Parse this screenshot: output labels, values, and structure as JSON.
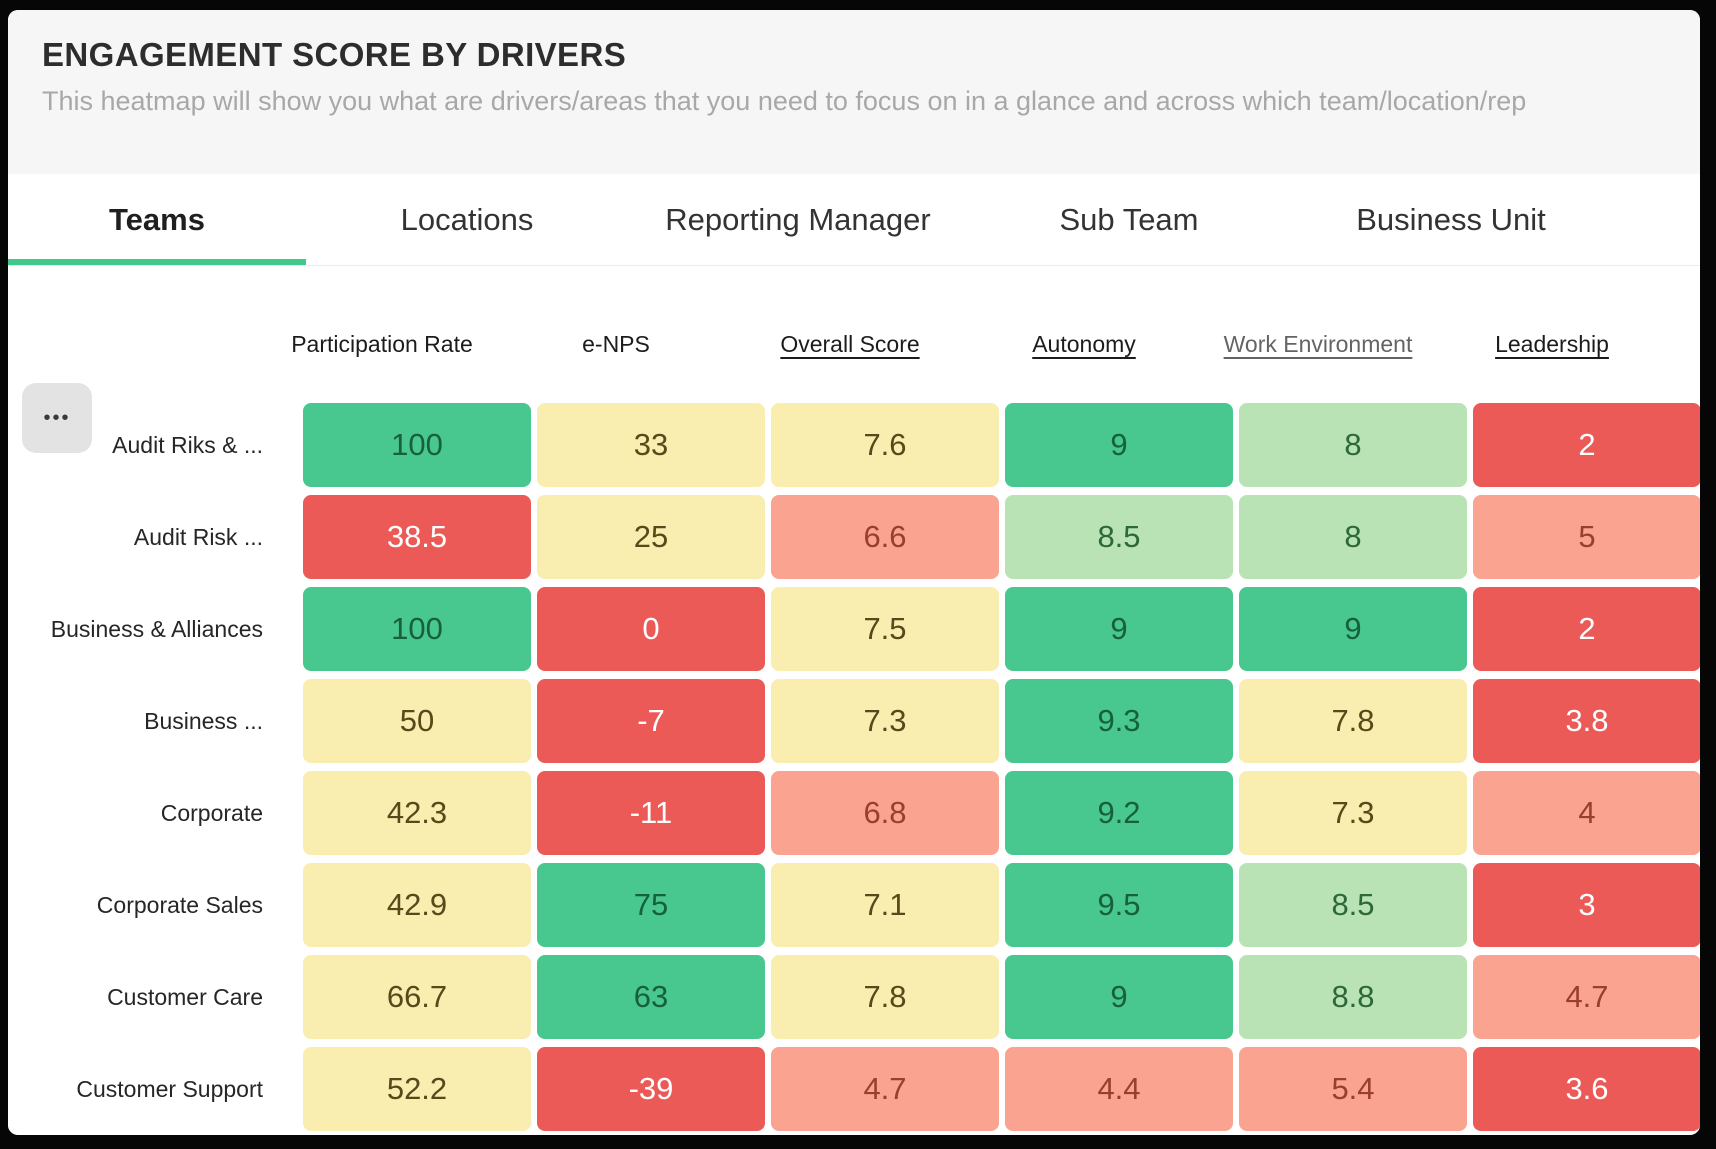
{
  "header": {
    "title": "ENGAGEMENT SCORE BY DRIVERS",
    "subtitle": "This heatmap will show you what are drivers/areas that you need to focus on in a glance and across which team/location/rep"
  },
  "tabs": [
    {
      "label": "Teams",
      "state": "active"
    },
    {
      "label": "Locations",
      "state": "inactive"
    },
    {
      "label": "Reporting Manager",
      "state": "inactive"
    },
    {
      "label": "Sub Team",
      "state": "inactive"
    },
    {
      "label": "Business Unit",
      "state": "inactive"
    }
  ],
  "toolbar": {
    "more_icon": "ellipsis-icon",
    "more_glyph": "•••"
  },
  "accent_color": "#41c98c",
  "chart_data": {
    "type": "heatmap",
    "title": "ENGAGEMENT SCORE BY DRIVERS",
    "legend": "none",
    "columns": [
      {
        "label": "Participation Rate",
        "style": "plain"
      },
      {
        "label": "e-NPS",
        "style": "plain"
      },
      {
        "label": "Overall Score",
        "style": "underline"
      },
      {
        "label": "Autonomy",
        "style": "underline"
      },
      {
        "label": "Work Environment",
        "style": "underline muted"
      },
      {
        "label": "Leadership",
        "style": "underline"
      }
    ],
    "rows": [
      {
        "label": "Audit Riks & ...",
        "cells": [
          {
            "value": 100,
            "tone": "green"
          },
          {
            "value": 33,
            "tone": "yellow"
          },
          {
            "value": 7.6,
            "tone": "yellow"
          },
          {
            "value": 9,
            "tone": "green"
          },
          {
            "value": 8,
            "tone": "lightgreen"
          },
          {
            "value": 2,
            "tone": "red"
          }
        ]
      },
      {
        "label": "Audit Risk ...",
        "cells": [
          {
            "value": 38.5,
            "tone": "red"
          },
          {
            "value": 25,
            "tone": "yellow"
          },
          {
            "value": 6.6,
            "tone": "salmon"
          },
          {
            "value": 8.5,
            "tone": "lightgreen"
          },
          {
            "value": 8,
            "tone": "lightgreen"
          },
          {
            "value": 5,
            "tone": "salmon"
          }
        ]
      },
      {
        "label": "Business & Alliances",
        "cells": [
          {
            "value": 100,
            "tone": "green"
          },
          {
            "value": 0,
            "tone": "red"
          },
          {
            "value": 7.5,
            "tone": "yellow"
          },
          {
            "value": 9,
            "tone": "green"
          },
          {
            "value": 9,
            "tone": "green"
          },
          {
            "value": 2,
            "tone": "red"
          }
        ]
      },
      {
        "label": "Business ...",
        "cells": [
          {
            "value": 50,
            "tone": "yellow"
          },
          {
            "value": -7,
            "tone": "red"
          },
          {
            "value": 7.3,
            "tone": "yellow"
          },
          {
            "value": 9.3,
            "tone": "green"
          },
          {
            "value": 7.8,
            "tone": "yellow"
          },
          {
            "value": 3.8,
            "tone": "red"
          }
        ]
      },
      {
        "label": "Corporate",
        "cells": [
          {
            "value": 42.3,
            "tone": "yellow"
          },
          {
            "value": -11,
            "tone": "red"
          },
          {
            "value": 6.8,
            "tone": "salmon"
          },
          {
            "value": 9.2,
            "tone": "green"
          },
          {
            "value": 7.3,
            "tone": "yellow"
          },
          {
            "value": 4,
            "tone": "salmon"
          }
        ]
      },
      {
        "label": "Corporate Sales",
        "cells": [
          {
            "value": 42.9,
            "tone": "yellow"
          },
          {
            "value": 75,
            "tone": "green"
          },
          {
            "value": 7.1,
            "tone": "yellow"
          },
          {
            "value": 9.5,
            "tone": "green"
          },
          {
            "value": 8.5,
            "tone": "lightgreen"
          },
          {
            "value": 3,
            "tone": "red"
          }
        ]
      },
      {
        "label": "Customer Care",
        "cells": [
          {
            "value": 66.7,
            "tone": "yellow"
          },
          {
            "value": 63,
            "tone": "green"
          },
          {
            "value": 7.8,
            "tone": "yellow"
          },
          {
            "value": 9,
            "tone": "green"
          },
          {
            "value": 8.8,
            "tone": "lightgreen"
          },
          {
            "value": 4.7,
            "tone": "salmon"
          }
        ]
      },
      {
        "label": "Customer Support",
        "cells": [
          {
            "value": 52.2,
            "tone": "yellow"
          },
          {
            "value": -39,
            "tone": "red"
          },
          {
            "value": 4.7,
            "tone": "salmon"
          },
          {
            "value": 4.4,
            "tone": "salmon"
          },
          {
            "value": 5.4,
            "tone": "salmon"
          },
          {
            "value": 3.6,
            "tone": "red"
          }
        ]
      }
    ],
    "value_ranges": {
      "participation_rate": [
        0,
        100
      ],
      "e_nps": [
        -100,
        100
      ],
      "driver_scores": [
        0,
        10
      ]
    },
    "palette": {
      "green": "#48c78e",
      "lightgreen": "#b9e3b4",
      "yellow": "#faedb0",
      "salmon": "#f9a390",
      "red": "#eb5a57"
    }
  }
}
